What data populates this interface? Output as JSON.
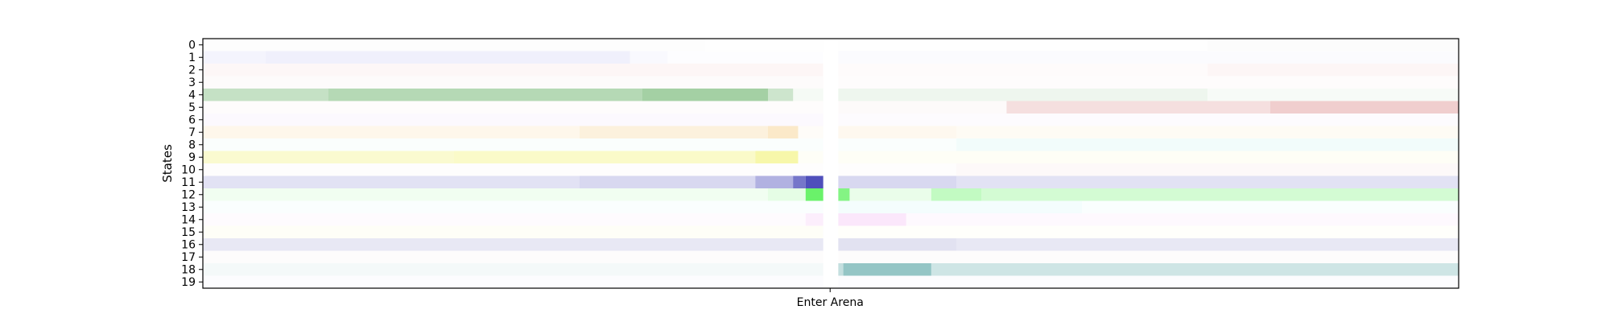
{
  "chart_data": {
    "type": "heatmap",
    "title": "",
    "xlabel": "",
    "ylabel": "States",
    "x_ticks": [
      {
        "label": "Enter Arena",
        "position": 0.4995
      }
    ],
    "x_range": [
      0,
      1
    ],
    "rows": [
      "0",
      "1",
      "2",
      "3",
      "4",
      "5",
      "6",
      "7",
      "8",
      "9",
      "10",
      "11",
      "12",
      "13",
      "14",
      "15",
      "16",
      "17",
      "18",
      "19"
    ],
    "event_gap": [
      0.494,
      0.506
    ],
    "cells": [
      {
        "row": 0,
        "color": "#dcdcdc",
        "segments": [
          [
            0.0,
            0.4,
            0.05
          ],
          [
            0.4,
            0.494,
            0.03
          ],
          [
            0.506,
            0.8,
            0.03
          ],
          [
            0.8,
            1.0,
            0.08
          ]
        ]
      },
      {
        "row": 1,
        "color": "#b4b4f0",
        "segments": [
          [
            0.0,
            0.05,
            0.15
          ],
          [
            0.05,
            0.34,
            0.2
          ],
          [
            0.34,
            0.37,
            0.08
          ],
          [
            0.37,
            0.494,
            0.03
          ],
          [
            0.506,
            1.0,
            0.05
          ]
        ]
      },
      {
        "row": 2,
        "color": "#f0b4b4",
        "segments": [
          [
            0.0,
            0.3,
            0.1
          ],
          [
            0.3,
            0.494,
            0.12
          ],
          [
            0.506,
            0.8,
            0.05
          ],
          [
            0.8,
            1.0,
            0.12
          ]
        ]
      },
      {
        "row": 3,
        "color": "#e6d2d2",
        "segments": [
          [
            0.0,
            0.494,
            0.08
          ],
          [
            0.506,
            1.0,
            0.06
          ]
        ]
      },
      {
        "row": 4,
        "color": "#5aaa5a",
        "segments": [
          [
            0.0,
            0.1,
            0.35
          ],
          [
            0.1,
            0.35,
            0.45
          ],
          [
            0.35,
            0.45,
            0.55
          ],
          [
            0.45,
            0.47,
            0.3
          ],
          [
            0.47,
            0.494,
            0.06
          ],
          [
            0.506,
            0.8,
            0.1
          ],
          [
            0.8,
            1.0,
            0.05
          ]
        ]
      },
      {
        "row": 5,
        "color": "#c85050",
        "segments": [
          [
            0.0,
            0.494,
            0.02
          ],
          [
            0.506,
            0.64,
            0.03
          ],
          [
            0.64,
            0.85,
            0.18
          ],
          [
            0.85,
            1.0,
            0.28
          ]
        ]
      },
      {
        "row": 6,
        "color": "#c8a0e6",
        "segments": [
          [
            0.0,
            0.494,
            0.06
          ],
          [
            0.506,
            1.0,
            0.04
          ]
        ]
      },
      {
        "row": 7,
        "color": "#f5c878",
        "segments": [
          [
            0.0,
            0.3,
            0.15
          ],
          [
            0.3,
            0.45,
            0.25
          ],
          [
            0.45,
            0.474,
            0.4
          ],
          [
            0.474,
            0.494,
            0.05
          ],
          [
            0.506,
            0.6,
            0.12
          ],
          [
            0.6,
            1.0,
            0.08
          ]
        ]
      },
      {
        "row": 8,
        "color": "#96e6dc",
        "segments": [
          [
            0.0,
            0.494,
            0.05
          ],
          [
            0.506,
            0.6,
            0.05
          ],
          [
            0.6,
            1.0,
            0.12
          ]
        ]
      },
      {
        "row": 9,
        "color": "#f0f064",
        "segments": [
          [
            0.0,
            0.2,
            0.3
          ],
          [
            0.2,
            0.44,
            0.35
          ],
          [
            0.44,
            0.474,
            0.55
          ],
          [
            0.474,
            0.494,
            0.05
          ],
          [
            0.506,
            1.0,
            0.06
          ]
        ]
      },
      {
        "row": 10,
        "color": "#f0c8c8",
        "segments": [
          [
            0.0,
            0.494,
            0.04
          ],
          [
            0.506,
            0.6,
            0.04
          ],
          [
            0.6,
            1.0,
            0.1
          ]
        ]
      },
      {
        "row": 11,
        "color": "#3c3cb4",
        "segments": [
          [
            0.0,
            0.3,
            0.15
          ],
          [
            0.3,
            0.44,
            0.2
          ],
          [
            0.44,
            0.47,
            0.4
          ],
          [
            0.47,
            0.48,
            0.7
          ],
          [
            0.48,
            0.494,
            0.9
          ],
          [
            0.506,
            0.6,
            0.2
          ],
          [
            0.6,
            1.0,
            0.15
          ]
        ]
      },
      {
        "row": 12,
        "color": "#50f050",
        "segments": [
          [
            0.0,
            0.45,
            0.08
          ],
          [
            0.45,
            0.48,
            0.15
          ],
          [
            0.48,
            0.494,
            0.85
          ],
          [
            0.506,
            0.515,
            0.7
          ],
          [
            0.515,
            0.58,
            0.12
          ],
          [
            0.58,
            0.62,
            0.35
          ],
          [
            0.62,
            1.0,
            0.25
          ]
        ]
      },
      {
        "row": 13,
        "color": "#96f0f0",
        "segments": [
          [
            0.0,
            0.494,
            0.05
          ],
          [
            0.506,
            0.7,
            0.1
          ],
          [
            0.7,
            1.0,
            0.05
          ]
        ]
      },
      {
        "row": 14,
        "color": "#f0a0f0",
        "segments": [
          [
            0.0,
            0.48,
            0.04
          ],
          [
            0.48,
            0.494,
            0.18
          ],
          [
            0.506,
            0.56,
            0.25
          ],
          [
            0.56,
            1.0,
            0.06
          ]
        ]
      },
      {
        "row": 15,
        "color": "#f0f078",
        "segments": [
          [
            0.0,
            0.494,
            0.06
          ],
          [
            0.506,
            1.0,
            0.03
          ]
        ]
      },
      {
        "row": 16,
        "color": "#8c8cc8",
        "segments": [
          [
            0.0,
            0.494,
            0.2
          ],
          [
            0.506,
            0.6,
            0.25
          ],
          [
            0.6,
            1.0,
            0.2
          ]
        ]
      },
      {
        "row": 17,
        "color": "#dcc8c8",
        "segments": [
          [
            0.0,
            0.494,
            0.06
          ],
          [
            0.506,
            1.0,
            0.05
          ]
        ]
      },
      {
        "row": 18,
        "color": "#3c9696",
        "segments": [
          [
            0.0,
            0.494,
            0.06
          ],
          [
            0.506,
            0.51,
            0.3
          ],
          [
            0.51,
            0.58,
            0.55
          ],
          [
            0.58,
            1.0,
            0.25
          ]
        ]
      },
      {
        "row": 19,
        "color": "#b4b4dc",
        "segments": [
          [
            0.0,
            0.494,
            0.04
          ],
          [
            0.506,
            1.0,
            0.04
          ]
        ]
      }
    ]
  }
}
